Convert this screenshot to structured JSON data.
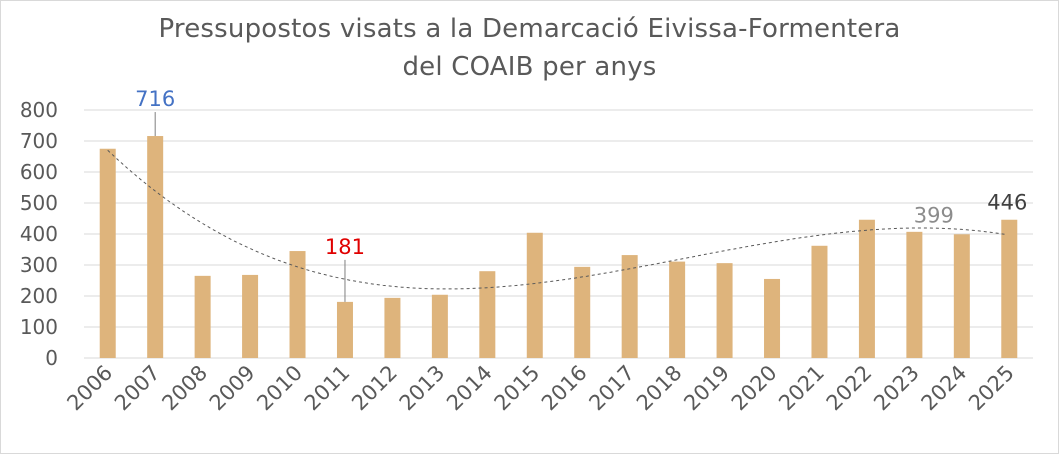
{
  "chart_data": {
    "type": "bar",
    "title": "Pressupostos visats a la Demarcació Eivissa-Formentera",
    "subtitle": "del COAIB per anys",
    "xlabel": "",
    "ylabel": "",
    "ylim": [
      0,
      800
    ],
    "yticks": [
      "0",
      "100",
      "200",
      "300",
      "400",
      "500",
      "600",
      "700",
      "800"
    ],
    "grid": true,
    "legend": "none",
    "trendline": "polynomial (dashed)",
    "bar_color": "#DEB47C",
    "categories": [
      "2006",
      "2007",
      "2008",
      "2009",
      "2010",
      "2011",
      "2012",
      "2013",
      "2014",
      "2015",
      "2016",
      "2017",
      "2018",
      "2019",
      "2020",
      "2021",
      "2022",
      "2023",
      "2024",
      "2025"
    ],
    "values": [
      675,
      716,
      265,
      268,
      345,
      181,
      194,
      204,
      280,
      404,
      294,
      332,
      311,
      306,
      255,
      362,
      446,
      407,
      399,
      446
    ],
    "annotations": [
      {
        "label": "716",
        "category": "2007",
        "color": "#4472C4"
      },
      {
        "label": "181",
        "category": "2011",
        "color": "#E00000"
      },
      {
        "label": "399",
        "category": "2024",
        "color": "#8C8C8C"
      },
      {
        "label": "446",
        "category": "2025",
        "color": "#404040"
      }
    ]
  }
}
